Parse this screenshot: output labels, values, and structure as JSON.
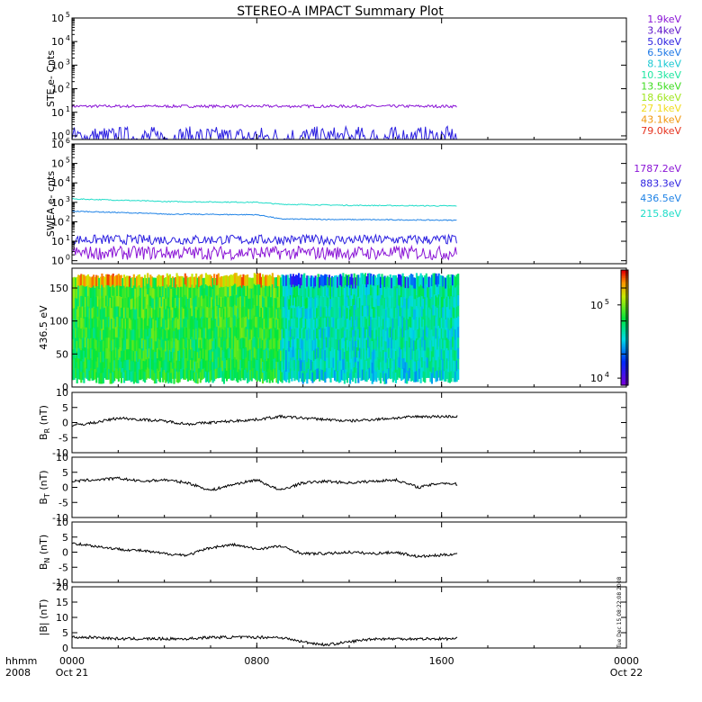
{
  "title": "STEREO-A IMPACT Summary Plot",
  "side_stamp": "Tue Dec 15 08:22:08 2008",
  "time_axis": {
    "corner_top": "hhmm",
    "corner_bottom": "2008",
    "ticks": [
      {
        "t": 0,
        "label": "0000",
        "date": "Oct 21"
      },
      {
        "t": 8,
        "label": "0800",
        "date": ""
      },
      {
        "t": 16,
        "label": "1600",
        "date": ""
      },
      {
        "t": 24,
        "label": "0000",
        "date": "Oct 22"
      }
    ],
    "range_hours": [
      0,
      24
    ],
    "data_end_hours": 16.7
  },
  "chart_data": [
    {
      "id": "ste",
      "type": "line",
      "ylabel": "STE e- Cnts",
      "yscale": "log",
      "ylim": [
        0.7,
        100000
      ],
      "yticks": [
        {
          "v": 1,
          "exp": "0"
        },
        {
          "v": 10,
          "exp": "1"
        },
        {
          "v": 100,
          "exp": "2"
        },
        {
          "v": 1000,
          "exp": "3"
        },
        {
          "v": 10000,
          "exp": "4"
        },
        {
          "v": 100000,
          "exp": "5"
        }
      ],
      "legend": [
        {
          "name": "1.9keV",
          "color": "#8a14d6"
        },
        {
          "name": "3.4keV",
          "color": "#5a10c8"
        },
        {
          "name": "5.0keV",
          "color": "#2a1ee0"
        },
        {
          "name": "6.5keV",
          "color": "#1e78e6"
        },
        {
          "name": "8.1keV",
          "color": "#19c8d2"
        },
        {
          "name": "10.3keV",
          "color": "#1ee6a0"
        },
        {
          "name": "13.5keV",
          "color": "#3cdc1e"
        },
        {
          "name": "18.6keV",
          "color": "#a0e61e"
        },
        {
          "name": "27.1keV",
          "color": "#f0dc1e"
        },
        {
          "name": "43.1keV",
          "color": "#f0960a"
        },
        {
          "name": "79.0keV",
          "color": "#e6321e"
        }
      ],
      "series": [
        {
          "name": "1.9keV",
          "color": "#8a14d6",
          "level": 18,
          "noise": 0.06
        },
        {
          "name": "5.0keV",
          "color": "#2a1ee0",
          "level": 0.8,
          "noise": 0.5
        }
      ]
    },
    {
      "id": "swea",
      "type": "line",
      "ylabel": "SWEA e- cnts",
      "yscale": "log",
      "ylim": [
        0.7,
        1000000
      ],
      "yticks": [
        {
          "v": 1,
          "exp": "0"
        },
        {
          "v": 10,
          "exp": "1"
        },
        {
          "v": 100,
          "exp": "2"
        },
        {
          "v": 1000,
          "exp": "3"
        },
        {
          "v": 10000,
          "exp": "4"
        },
        {
          "v": 100000,
          "exp": "5"
        },
        {
          "v": 1000000,
          "exp": "6"
        }
      ],
      "legend": [
        {
          "name": "1787.2eV",
          "color": "#8a14d6"
        },
        {
          "name": "883.3eV",
          "color": "#2a1ee0"
        },
        {
          "name": "436.5eV",
          "color": "#1e82e6"
        },
        {
          "name": "215.8eV",
          "color": "#1edcc8"
        }
      ],
      "series": [
        {
          "name": "215.8eV",
          "color": "#1edcc8",
          "x": [
            0,
            4,
            8,
            9,
            12,
            16.7
          ],
          "y": [
            1500,
            1100,
            1000,
            800,
            700,
            650
          ]
        },
        {
          "name": "436.5eV",
          "color": "#1e82e6",
          "x": [
            0,
            4,
            8,
            9,
            12,
            16.7
          ],
          "y": [
            350,
            250,
            230,
            140,
            130,
            120
          ]
        },
        {
          "name": "883.3eV",
          "color": "#2a1ee0",
          "level": 12,
          "noise": 0.25
        },
        {
          "name": "1787.2eV",
          "color": "#8a14d6",
          "level": 2.5,
          "noise": 0.35
        }
      ]
    },
    {
      "id": "pad",
      "type": "heatmap",
      "ylabel": "436.5 eV",
      "ylim": [
        0,
        180
      ],
      "yticks": [
        0,
        50,
        100,
        150
      ],
      "colorbar": {
        "scale": "log",
        "range": [
          8000,
          300000
        ],
        "ticks": [
          {
            "v": 10000,
            "exp": "4"
          },
          {
            "v": 100000,
            "exp": "5"
          }
        ]
      }
    },
    {
      "id": "br",
      "type": "line",
      "ylabel_main": "B",
      "ylabel_sub": "R",
      "ylabel_unit": " (nT)",
      "ylim": [
        -10,
        10
      ],
      "yticks": [
        -10,
        -5,
        0,
        5,
        10
      ],
      "series": [
        {
          "color": "#000000",
          "x": [
            0,
            1,
            2,
            3,
            4,
            5,
            6,
            7,
            8,
            9,
            10,
            11,
            12,
            13,
            14,
            15,
            16,
            16.7
          ],
          "y": [
            -1,
            0,
            1.5,
            1,
            0.5,
            -0.5,
            0,
            0.5,
            1,
            2,
            1.5,
            1,
            0.5,
            1,
            1.5,
            2,
            2,
            2
          ]
        }
      ]
    },
    {
      "id": "bt",
      "type": "line",
      "ylabel_main": "B",
      "ylabel_sub": "T",
      "ylabel_unit": " (nT)",
      "ylim": [
        -10,
        10
      ],
      "yticks": [
        -10,
        -5,
        0,
        5,
        10
      ],
      "series": [
        {
          "color": "#000000",
          "x": [
            0,
            1,
            2,
            3,
            4,
            5,
            6,
            7,
            8,
            9,
            10,
            11,
            12,
            13,
            14,
            15,
            16,
            16.7
          ],
          "y": [
            2,
            2.5,
            3,
            2,
            2.5,
            1.5,
            -1,
            1,
            2.5,
            -1,
            1.5,
            2,
            1.5,
            2,
            2.5,
            0,
            1.5,
            1
          ]
        }
      ]
    },
    {
      "id": "bn",
      "type": "line",
      "ylabel_main": "B",
      "ylabel_sub": "N",
      "ylabel_unit": " (nT)",
      "ylim": [
        -10,
        10
      ],
      "yticks": [
        -10,
        -5,
        0,
        5,
        10
      ],
      "series": [
        {
          "color": "#000000",
          "x": [
            0,
            1,
            2,
            3,
            4,
            5,
            6,
            7,
            8,
            9,
            10,
            11,
            12,
            13,
            14,
            15,
            16,
            16.7
          ],
          "y": [
            3,
            2,
            1,
            0.5,
            -0.5,
            -1,
            1.5,
            2.5,
            1,
            2,
            -0.5,
            -0.5,
            0,
            -0.5,
            0,
            -1.5,
            -1,
            -0.5
          ]
        }
      ]
    },
    {
      "id": "bmag",
      "type": "line",
      "ylabel_main": "|B|",
      "ylabel_sub": "",
      "ylabel_unit": " (nT)",
      "ylim": [
        0,
        20
      ],
      "yticks": [
        0,
        5,
        10,
        15,
        20
      ],
      "series": [
        {
          "color": "#000000",
          "x": [
            0,
            1,
            2,
            3,
            4,
            5,
            6,
            7,
            8,
            9,
            10,
            11,
            12,
            13,
            14,
            15,
            16,
            16.7
          ],
          "y": [
            3.5,
            3.5,
            3,
            3,
            3,
            3,
            3.5,
            3.5,
            3.5,
            3.5,
            2,
            1,
            2,
            3,
            3,
            3,
            3,
            3
          ]
        }
      ]
    }
  ]
}
